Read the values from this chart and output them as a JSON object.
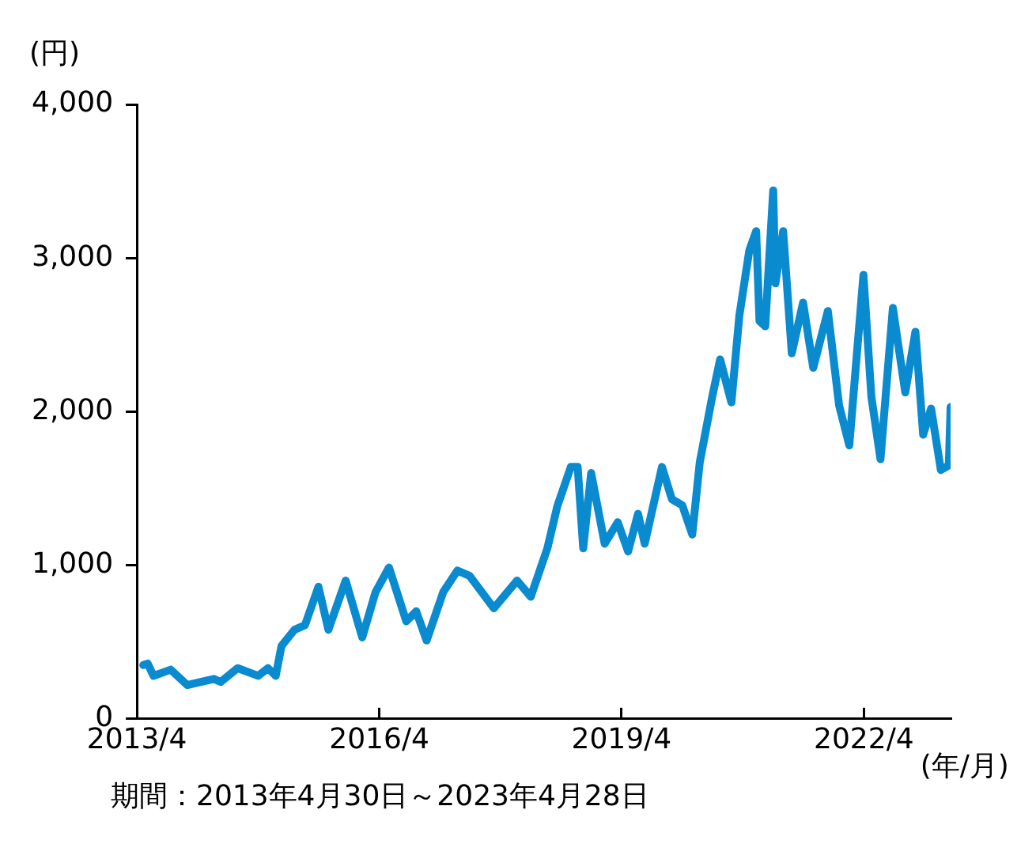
{
  "chart_data": {
    "type": "line",
    "ylabel": "(円)",
    "xlabel": "(年/月)",
    "annotations": [
      "期間：2013年4月30日～2023年4月28日"
    ],
    "x": [
      "2013-04-30",
      "2013-05-20",
      "2013-06-15",
      "2013-09-01",
      "2013-11-15",
      "2014-03-15",
      "2014-04-15",
      "2014-07-01",
      "2014-10-01",
      "2014-11-15",
      "2014-12-20",
      "2015-01-15",
      "2015-03-15",
      "2015-05-01",
      "2015-07-01",
      "2015-08-15",
      "2015-11-01",
      "2016-01-15",
      "2016-03-15",
      "2016-05-15",
      "2016-08-01",
      "2016-09-15",
      "2016-11-01",
      "2017-01-15",
      "2017-03-20",
      "2017-05-15",
      "2017-09-01",
      "2017-12-15",
      "2018-02-15",
      "2018-05-01",
      "2018-06-15",
      "2018-08-15",
      "2018-09-15",
      "2018-10-10",
      "2018-11-15",
      "2019-01-15",
      "2019-03-15",
      "2019-05-01",
      "2019-06-15",
      "2019-07-15",
      "2019-10-01",
      "2019-11-15",
      "2020-01-01",
      "2020-02-15",
      "2020-03-20",
      "2020-05-15",
      "2020-06-20",
      "2020-08-10",
      "2020-09-15",
      "2020-10-30",
      "2020-11-30",
      "2020-12-15",
      "2021-01-10",
      "2021-02-15",
      "2021-02-25",
      "2021-04-01",
      "2021-05-10",
      "2021-06-30",
      "2021-08-15",
      "2021-10-20",
      "2021-12-10",
      "2022-01-25",
      "2022-03-30",
      "2022-05-05",
      "2022-06-15",
      "2022-08-10",
      "2022-10-05",
      "2022-11-20",
      "2022-12-25",
      "2023-01-30",
      "2023-03-15",
      "2023-04-20",
      "2023-04-28"
    ],
    "values": [
      350,
      360,
      280,
      320,
      220,
      260,
      240,
      330,
      280,
      330,
      280,
      475,
      580,
      610,
      860,
      580,
      900,
      530,
      825,
      985,
      635,
      700,
      510,
      825,
      965,
      930,
      720,
      900,
      795,
      1110,
      1385,
      1640,
      1640,
      1110,
      1600,
      1140,
      1280,
      1090,
      1335,
      1140,
      1640,
      1430,
      1390,
      1200,
      1670,
      2095,
      2340,
      2060,
      2625,
      3050,
      3175,
      2590,
      2555,
      3440,
      2835,
      3175,
      2380,
      2710,
      2285,
      2655,
      2040,
      1780,
      2890,
      2095,
      1690,
      2675,
      2125,
      2520,
      1850,
      2020,
      1620,
      1650,
      2030
    ],
    "color": "#0a8bd0",
    "xlim": [
      "2013-04",
      "2023-04-28"
    ],
    "xticks": [
      {
        "value": "2013-04",
        "label": "2013/4"
      },
      {
        "value": "2016-04",
        "label": "2016/4"
      },
      {
        "value": "2019-04",
        "label": "2019/4"
      },
      {
        "value": "2022-04",
        "label": "2022/4"
      }
    ],
    "ylim": [
      0,
      4000
    ],
    "yticks": [
      0,
      {
        "value": 1000,
        "label": "1,000"
      },
      {
        "value": 2000,
        "label": "2,000"
      },
      {
        "value": 3000,
        "label": "3,000"
      },
      {
        "value": 4000,
        "label": "4,000"
      }
    ],
    "grid": false,
    "legend": false,
    "marker": "none",
    "line_style": "solid"
  }
}
